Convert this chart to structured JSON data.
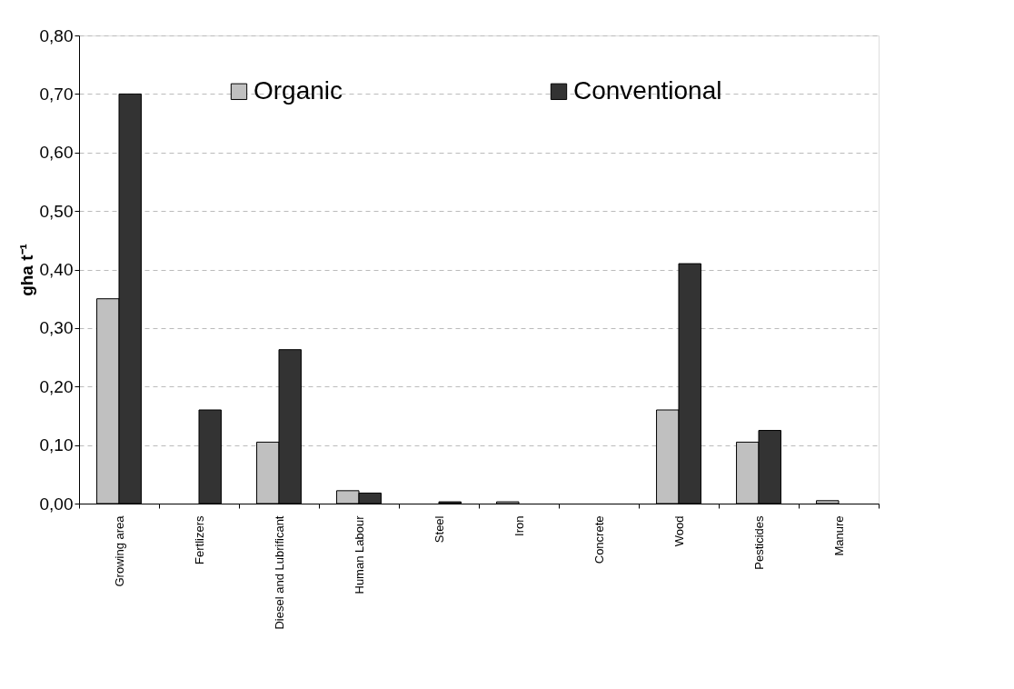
{
  "chart_data": {
    "type": "bar",
    "ylabel": "gha t⁻¹",
    "categories": [
      "Growing area",
      "Fertlizers",
      "Diesel and Lubrificant",
      "Human Labour",
      "Steel",
      "Iron",
      "Concrete",
      "Wood",
      "Pesticides",
      "Manure"
    ],
    "series": [
      {
        "name": "Organic",
        "color": "#c0c0c0",
        "values": [
          0.35,
          null,
          0.105,
          0.022,
          null,
          0.003,
          null,
          0.16,
          0.105,
          0.005
        ]
      },
      {
        "name": "Conventional",
        "color": "#333333",
        "values": [
          0.7,
          0.16,
          0.263,
          0.018,
          0.003,
          null,
          null,
          0.41,
          0.125,
          null
        ]
      }
    ],
    "ylim": [
      0,
      0.8
    ],
    "yticks": [
      {
        "value": 0,
        "label": "0,00"
      },
      {
        "value": 0.1,
        "label": "0,10"
      },
      {
        "value": 0.2,
        "label": "0,20"
      },
      {
        "value": 0.3,
        "label": "0,30"
      },
      {
        "value": 0.4,
        "label": "0,40"
      },
      {
        "value": 0.5,
        "label": "0,50"
      },
      {
        "value": 0.6,
        "label": "0,60"
      },
      {
        "value": 0.7,
        "label": "0,70"
      },
      {
        "value": 0.8,
        "label": "0,80"
      }
    ],
    "grid": "y",
    "legend": "top"
  }
}
